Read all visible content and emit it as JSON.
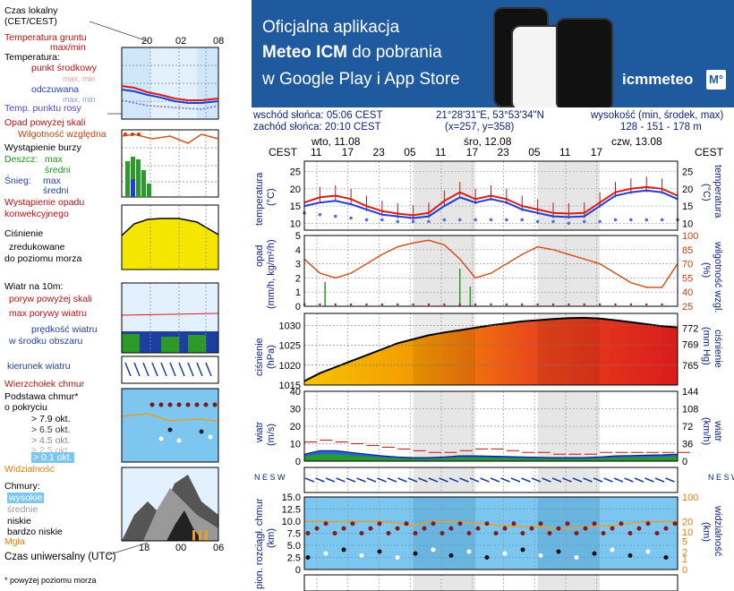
{
  "banner": {
    "line1": "Oficjalna aplikacja",
    "line2_bold": "Meteo ICM",
    "line2_rest": " do pobrania",
    "line3": "w Google Play i App Store",
    "logo": "icmmeteo",
    "logo_badge": "M°",
    "bg_color": "#1f5a9e"
  },
  "info": {
    "sunrise": "wschód słońca: 05:06 CEST",
    "sunset": "zachód słońca: 20:10 CEST",
    "coords": "21°28'31\"E, 53°53'34\"N",
    "grid": "(x=257,  y=358)",
    "height_label": "wysokość (min, środek, max)",
    "height_values": "128 - 151 - 178 m"
  },
  "legend": {
    "czas_lokalny": "Czas lokalny",
    "cet_cest": "(CET/CEST)",
    "top_ticks": [
      "20",
      "02",
      "08"
    ],
    "temp_gruntu": "Temperatura gruntu",
    "max_min": "max/min",
    "temperatura": "Temperatura:",
    "punkt_srodkowy": "punkt środkowy",
    "max_min2": "max, min",
    "odczuwana": "odczuwana",
    "max_min3": "max, min",
    "temp_rosy": "Temp. punktu rosy",
    "opad": "Opad powyżej skali",
    "wilgotnosc": "Wilgotność względna",
    "burza": "Wystąpienie burzy",
    "deszcz": "Deszcz:",
    "max": "max",
    "sredni": "średni",
    "snieg": "Śnieg:",
    "max2": "max",
    "sredni2": "średni",
    "wystapienie_opadu": "Wystąpienie opadu",
    "konwekcyjnego": "konwekcyjnego",
    "cisnienie": "Ciśnienie",
    "zredukowane": "zredukowane",
    "do_poziomu": "do poziomu morza",
    "wiatr_na": "Wiatr na 10m:",
    "poryw": "poryw powyżej skali",
    "max_porywy": "max porywy wiatru",
    "predkosc": "prędkość wiatru",
    "w_srodku": "w środku obszaru",
    "kierunek": "kierunek wiatru",
    "wierzcholek": "Wierzchołek chmur",
    "podstawa": "Podstawa chmur*",
    "o_pokryciu": "o pokryciu",
    "okt79": "> 7.9 okt.",
    "okt65": "> 6.5 okt.",
    "okt45": "> 4.5 okt.",
    "okt25": "> 2.5 okt.",
    "okt01": "> 0.1 okt.",
    "widzialnosc": "Widzialność",
    "chmury": "Chmury:",
    "wysokie": "wysokie",
    "srednie": "średnie",
    "niskie": "niskie",
    "bardzo_niskie": "bardzo niskie",
    "mgla": "Mgła",
    "bottom_ticks": [
      "18",
      "00",
      "06"
    ],
    "czas_utc": "Czas uniwersalny (UTC)",
    "footnote": "* powyżej poziomu morza"
  },
  "chart_top": {
    "cest": "CEST",
    "days": [
      "wto, 11.08",
      "śro, 12.08",
      "czw, 13.08"
    ],
    "hours": [
      "11",
      "17",
      "23",
      "05",
      "11",
      "17",
      "23",
      "05",
      "11",
      "17"
    ]
  },
  "panel_labels": {
    "temperatura": "temperatura",
    "temp_unit": "(°C)",
    "opad": "opad",
    "opad_unit": "(mm/h, kg/m²/h)",
    "wilg": "wilgotność wzgl.",
    "wilg_unit": "(%)",
    "cisnienie": "ciśnienie",
    "cis_unit_l": "(hPa)",
    "cis_unit_r": "(mm Hg)",
    "wiatr": "wiatr",
    "wiatr_unit_l": "(m/s)",
    "wiatr_unit_r": "(km/h)",
    "chmury": "pion. rozciągł. chmur",
    "chmury_unit": "(km)",
    "widz": "widzialność",
    "widz_unit": "(km)",
    "dir_label": "N E S W"
  },
  "chart_data": [
    {
      "type": "line",
      "title": "temperatura",
      "ylabel": "(°C)",
      "ylim": [
        8,
        28
      ],
      "yticks": [
        10,
        15,
        20,
        25
      ],
      "x_hours": [
        0,
        3,
        6,
        9,
        12,
        15,
        18,
        21,
        24,
        27,
        30,
        33,
        36,
        39,
        42,
        45,
        48,
        51,
        54,
        57,
        60,
        63,
        66,
        69,
        72
      ],
      "series": [
        {
          "name": "punkt środkowy",
          "color": "#d81b1b",
          "values": [
            16,
            17.5,
            18,
            17,
            15,
            13.5,
            12.8,
            12.3,
            13,
            16.5,
            19,
            17,
            18,
            17,
            15,
            14,
            13,
            12.8,
            13,
            16,
            19,
            20,
            20.5,
            20,
            18
          ]
        },
        {
          "name": "odczuwana",
          "color": "#1e3fd0",
          "values": [
            15,
            16,
            16.5,
            15.5,
            14,
            12.5,
            12,
            11.5,
            12,
            15,
            17.5,
            16,
            17,
            16,
            14,
            13,
            12,
            11.8,
            12,
            15,
            18,
            19,
            19.5,
            19,
            17
          ]
        }
      ],
      "dew_point": [
        13,
        12.5,
        12,
        11.5,
        11,
        11,
        10.5,
        10.5,
        10.5,
        11,
        11,
        11,
        11,
        11,
        11,
        10.5,
        10.5,
        10,
        10.5,
        10.5,
        11,
        11,
        11,
        11,
        11
      ]
    },
    {
      "type": "line",
      "title": "opad / wilgotność wzgl.",
      "ylabel_left": "(mm/h, kg/m²/h)",
      "ylabel_right": "(%)",
      "ylim_left": [
        0,
        5
      ],
      "yticks_left": [
        0,
        1,
        2,
        3,
        4,
        5
      ],
      "yticks_right": [
        25,
        40,
        55,
        70,
        85,
        100
      ],
      "humidity": [
        75,
        60,
        55,
        60,
        70,
        80,
        88,
        92,
        95,
        90,
        75,
        55,
        60,
        70,
        80,
        88,
        85,
        80,
        75,
        70,
        60,
        50,
        45,
        45,
        70
      ]
    },
    {
      "type": "area",
      "title": "ciśnienie",
      "ylim": [
        1015,
        1033
      ],
      "yticks": [
        1015,
        1020,
        1025,
        1030
      ],
      "yticks_right": [
        765,
        769,
        772
      ],
      "values": [
        1016,
        1018,
        1019.5,
        1021,
        1022.5,
        1024,
        1025.5,
        1026.5,
        1027.5,
        1028.2,
        1028.8,
        1029.4,
        1030,
        1030.5,
        1031,
        1031.3,
        1031.6,
        1031.8,
        1031.9,
        1031.7,
        1031.3,
        1030.8,
        1030.3,
        1029.8,
        1029.5
      ]
    },
    {
      "type": "line",
      "title": "wiatr",
      "ylabel_left": "(m/s)",
      "ylabel_right": "(km/h)",
      "ylim": [
        0,
        40
      ],
      "yticks_left": [
        0,
        10,
        20,
        30,
        40
      ],
      "yticks_right": [
        0,
        36,
        72,
        108,
        144
      ],
      "gusts": [
        11,
        12,
        11,
        10,
        9,
        8,
        7,
        6,
        5,
        5,
        6,
        7,
        7,
        6,
        5,
        5,
        4,
        4,
        4,
        5,
        5,
        5,
        5,
        5,
        5
      ],
      "speed": [
        2,
        3,
        3,
        2.5,
        2,
        1.5,
        1.2,
        1,
        1,
        1.2,
        1.5,
        1.5,
        1.4,
        1.3,
        1.2,
        1.1,
        1,
        1,
        1,
        1.2,
        1.5,
        1.6,
        1.7,
        1.8,
        2
      ]
    },
    {
      "type": "scatter",
      "title": "pion. rozciągł. chmur / widzialność",
      "ylim_left": [
        0,
        15
      ],
      "yticks_left": [
        0,
        2.5,
        5.0,
        7.5,
        10.0,
        12.5,
        15.0
      ],
      "yticks_right": [
        0,
        1,
        2,
        5,
        10,
        20,
        100
      ],
      "visibility": [
        20,
        20,
        20,
        20,
        20,
        20,
        18,
        15,
        20,
        20,
        20,
        18,
        16,
        15,
        14,
        14,
        13,
        13,
        14,
        15,
        15,
        18,
        20,
        20,
        20
      ]
    }
  ]
}
